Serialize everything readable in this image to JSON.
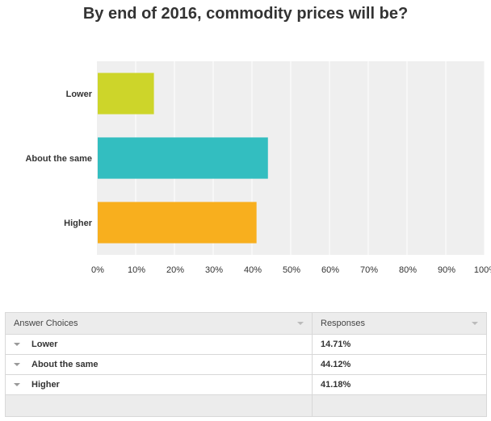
{
  "chart_data": {
    "type": "bar",
    "orientation": "horizontal",
    "title": "By end of 2016, commodity prices will be?",
    "categories": [
      "Lower",
      "About the same",
      "Higher"
    ],
    "values": [
      14.71,
      44.12,
      41.18
    ],
    "colors": [
      "#cdd52a",
      "#33bec0",
      "#f8af1e"
    ],
    "xlim": [
      0,
      100
    ],
    "xticks": [
      "0%",
      "10%",
      "20%",
      "30%",
      "40%",
      "50%",
      "60%",
      "70%",
      "80%",
      "90%",
      "100%"
    ],
    "grid": true,
    "xlabel": "",
    "ylabel": ""
  },
  "table": {
    "headers": [
      "Answer Choices",
      "Responses"
    ],
    "rows": [
      {
        "choice": "Lower",
        "response": "14.71%"
      },
      {
        "choice": "About the same",
        "response": "44.12%"
      },
      {
        "choice": "Higher",
        "response": "41.18%"
      }
    ]
  },
  "colors": {
    "plot_background": "#efefef",
    "gridline": "#ffffff",
    "header_background": "#ececec"
  }
}
